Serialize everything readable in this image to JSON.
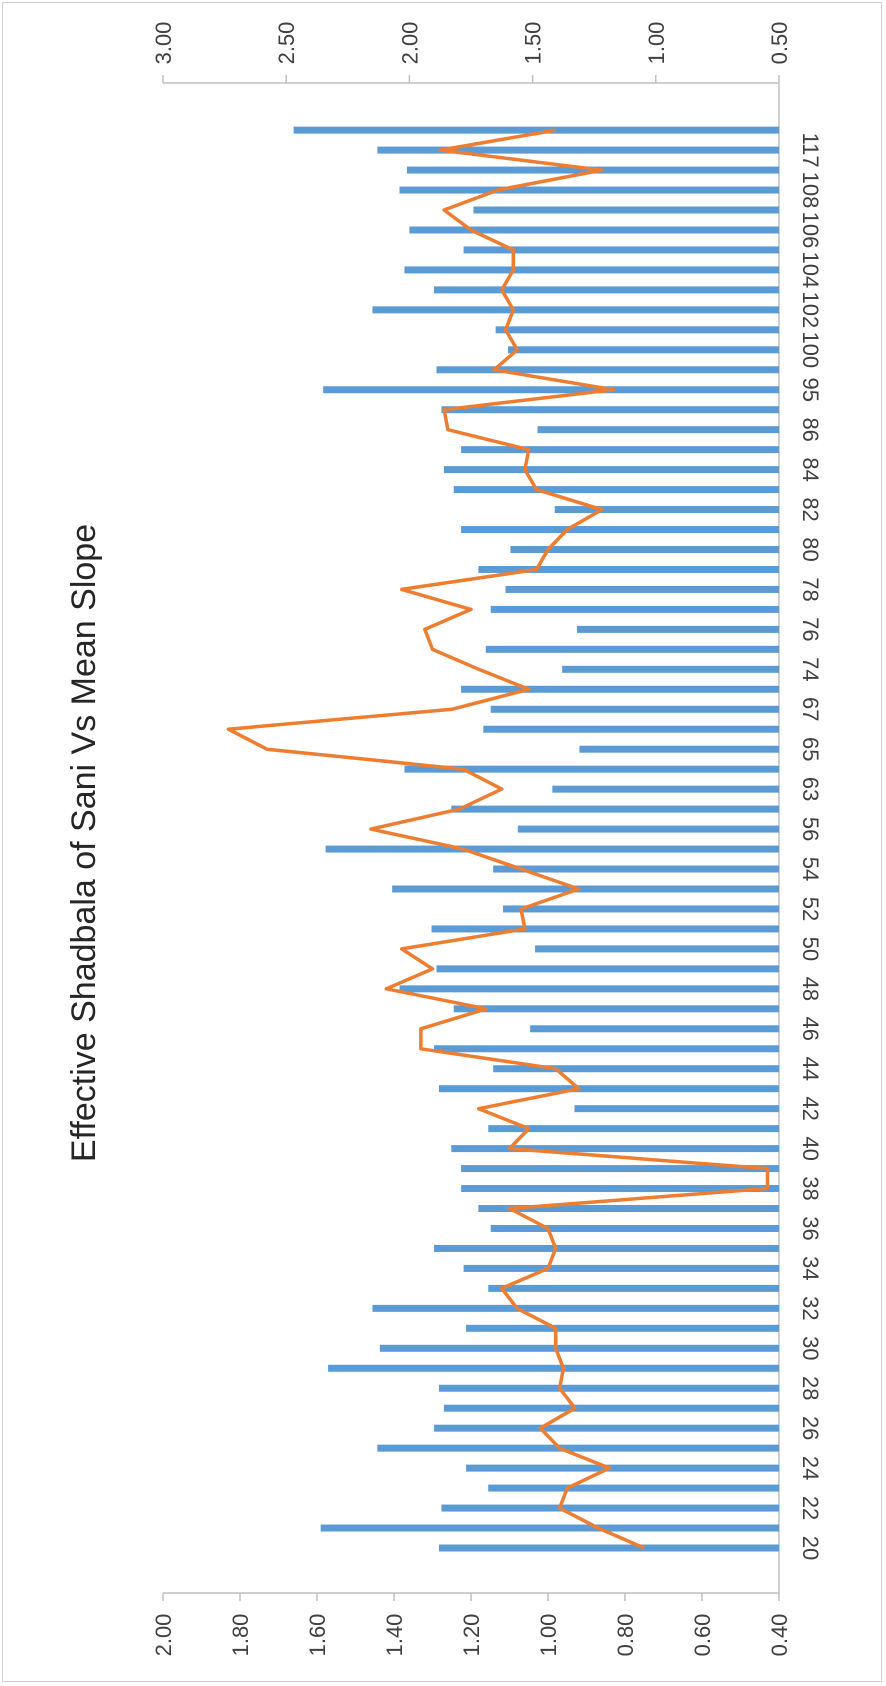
{
  "chart_data": {
    "type": "bar",
    "title": "Effective Shadbala of Sani Vs Mean Slope",
    "categories": [
      "20",
      "",
      "22",
      "",
      "24",
      "",
      "26",
      "",
      "28",
      "",
      "30",
      "",
      "32",
      "",
      "34",
      "",
      "36",
      "",
      "38",
      "",
      "40",
      "",
      "42",
      "",
      "44",
      "",
      "46",
      "",
      "48",
      "",
      "50",
      "",
      "52",
      "",
      "54",
      "",
      "56",
      "",
      "63",
      "",
      "65",
      "",
      "67",
      "",
      "74",
      "",
      "76",
      "",
      "78",
      "",
      "80",
      "",
      "82",
      "",
      "84",
      "",
      "86",
      "",
      "95",
      "",
      "100",
      "",
      "102",
      "",
      "104",
      "",
      "106",
      "",
      "108",
      "",
      "117"
    ],
    "bar_series": {
      "axis": "secondary",
      "color": "#5b9bd5",
      "values": [
        1.88,
        2.36,
        1.87,
        1.68,
        1.77,
        2.13,
        1.9,
        1.86,
        1.88,
        2.33,
        2.12,
        1.77,
        2.15,
        1.68,
        1.78,
        1.9,
        1.67,
        1.72,
        1.79,
        1.79,
        1.83,
        1.68,
        1.33,
        1.88,
        1.66,
        1.9,
        1.51,
        1.82,
        2.04,
        1.89,
        1.49,
        1.91,
        1.62,
        2.07,
        1.66,
        2.34,
        1.56,
        1.83,
        1.42,
        2.02,
        1.31,
        1.7,
        1.67,
        1.79,
        1.38,
        1.69,
        1.32,
        1.67,
        1.61,
        1.72,
        1.59,
        1.79,
        1.41,
        1.82,
        1.86,
        1.79,
        1.48,
        1.87,
        2.35,
        1.89,
        1.6,
        1.65,
        2.15,
        1.9,
        2.02,
        1.78,
        2.0,
        1.74,
        2.04,
        2.01,
        2.13,
        2.47
      ]
    },
    "line_series": {
      "axis": "primary",
      "color": "#ed7d31",
      "values": [
        0.75,
        0.87,
        0.97,
        0.95,
        0.84,
        0.97,
        1.02,
        0.93,
        0.97,
        0.96,
        0.98,
        0.98,
        1.08,
        1.12,
        1.0,
        0.98,
        1.0,
        1.1,
        0.43,
        0.43,
        1.1,
        1.05,
        1.18,
        0.92,
        0.98,
        1.33,
        1.33,
        1.16,
        1.42,
        1.3,
        1.38,
        1.06,
        1.07,
        0.92,
        1.07,
        1.22,
        1.46,
        1.23,
        1.12,
        1.22,
        1.73,
        1.83,
        1.25,
        1.05,
        1.18,
        1.3,
        1.32,
        1.2,
        1.38,
        1.03,
        1.0,
        0.95,
        0.86,
        1.03,
        1.06,
        1.05,
        1.26,
        1.27,
        0.83,
        1.14,
        1.08,
        1.11,
        1.09,
        1.12,
        1.09,
        1.09,
        1.2,
        1.27,
        1.13,
        0.86,
        1.28,
        0.98
      ]
    },
    "primary_axis": {
      "ylim": [
        0.4,
        2.0
      ],
      "ticks": [
        "0.40",
        "0.60",
        "0.80",
        "1.00",
        "1.20",
        "1.40",
        "1.60",
        "1.80",
        "2.00"
      ]
    },
    "secondary_axis": {
      "ylim": [
        0.5,
        3.0
      ],
      "ticks": [
        "0.50",
        "1.00",
        "1.50",
        "2.00",
        "2.50",
        "3.00"
      ]
    },
    "grid": false,
    "legend": "none",
    "orientation": "rotated 90 degrees clockwise"
  }
}
